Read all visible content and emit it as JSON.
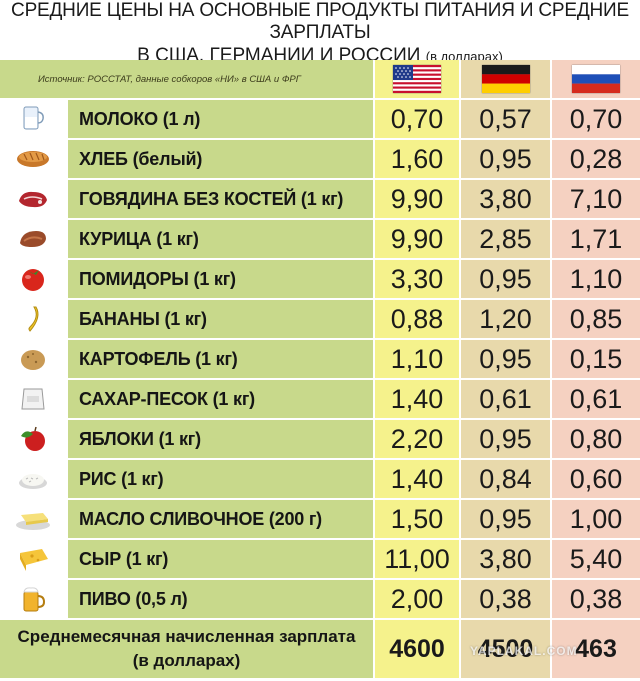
{
  "title": {
    "line1": "СРЕДНИЕ ЦЕНЫ НА ОСНОВНЫЕ ПРОДУКТЫ ПИТАНИЯ И СРЕДНИЕ ЗАРПЛАТЫ",
    "line2": "В США, ГЕРМАНИИ И РОССИИ",
    "unit": "(в долларах)"
  },
  "source": "Источник: РОССТАТ, данные собкоров «НИ» в США и ФРГ",
  "countries": [
    {
      "icon": "us-flag-icon",
      "color": "#f5f28c"
    },
    {
      "icon": "germany-flag-icon",
      "color": "#e8d9ab"
    },
    {
      "icon": "russia-flag-icon",
      "color": "#f5d1c1"
    }
  ],
  "rows": [
    {
      "icon": "milk-icon",
      "name": "МОЛОКО (1 л)",
      "us": "0,70",
      "de": "0,57",
      "ru": "0,70"
    },
    {
      "icon": "bread-icon",
      "name": "ХЛЕБ (белый)",
      "us": "1,60",
      "de": "0,95",
      "ru": "0,28"
    },
    {
      "icon": "beef-icon",
      "name": "ГОВЯДИНА БЕЗ КОСТЕЙ (1 кг)",
      "us": "9,90",
      "de": "3,80",
      "ru": "7,10"
    },
    {
      "icon": "chicken-icon",
      "name": "КУРИЦА (1 кг)",
      "us": "9,90",
      "de": "2,85",
      "ru": "1,71"
    },
    {
      "icon": "tomato-icon",
      "name": "ПОМИДОРЫ (1 кг)",
      "us": "3,30",
      "de": "0,95",
      "ru": "1,10"
    },
    {
      "icon": "banana-icon",
      "name": "БАНАНЫ (1 кг)",
      "us": "0,88",
      "de": "1,20",
      "ru": "0,85"
    },
    {
      "icon": "potato-icon",
      "name": "КАРТОФЕЛЬ (1 кг)",
      "us": "1,10",
      "de": "0,95",
      "ru": "0,15"
    },
    {
      "icon": "sugar-icon",
      "name": "САХАР-ПЕСОК (1 кг)",
      "us": "1,40",
      "de": "0,61",
      "ru": "0,61"
    },
    {
      "icon": "apple-icon",
      "name": "ЯБЛОКИ (1 кг)",
      "us": "2,20",
      "de": "0,95",
      "ru": "0,80"
    },
    {
      "icon": "rice-icon",
      "name": "РИС (1 кг)",
      "us": "1,40",
      "de": "0,84",
      "ru": "0,60"
    },
    {
      "icon": "butter-icon",
      "name": "МАСЛО СЛИВОЧНОЕ (200 г)",
      "us": "1,50",
      "de": "0,95",
      "ru": "1,00"
    },
    {
      "icon": "cheese-icon",
      "name": "СЫР (1 кг)",
      "us": "11,00",
      "de": "3,80",
      "ru": "5,40"
    },
    {
      "icon": "beer-icon",
      "name": "ПИВО (0,5 л)",
      "us": "2,00",
      "de": "0,38",
      "ru": "0,38"
    }
  ],
  "footer": {
    "label_line1": "Среднемесячная начисленная зарплата",
    "label_line2": "(в долларах)",
    "us": "4600",
    "de": "4500",
    "ru": "463"
  },
  "watermark": "YAPLAKAL.COM"
}
